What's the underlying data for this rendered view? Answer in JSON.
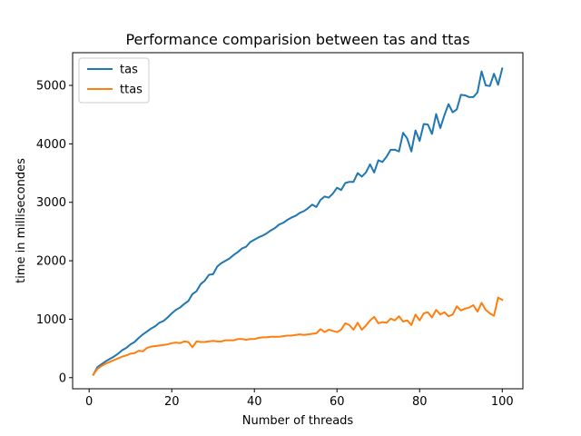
{
  "chart_data": {
    "type": "line",
    "title": "Performance comparision between tas and ttas",
    "xlabel": "Number of threads",
    "ylabel": "time in millisecondes",
    "xlim": [
      -4,
      105
    ],
    "ylim": [
      -190,
      5560
    ],
    "x_ticks": [
      0,
      20,
      40,
      60,
      80,
      100
    ],
    "y_ticks": [
      0,
      1000,
      2000,
      3000,
      4000,
      5000
    ],
    "grid": false,
    "legend_position": "upper-left",
    "x": [
      1,
      2,
      3,
      4,
      5,
      6,
      7,
      8,
      9,
      10,
      11,
      12,
      13,
      14,
      15,
      16,
      17,
      18,
      19,
      20,
      21,
      22,
      23,
      24,
      25,
      26,
      27,
      28,
      29,
      30,
      31,
      32,
      33,
      34,
      35,
      36,
      37,
      38,
      39,
      40,
      41,
      42,
      43,
      44,
      45,
      46,
      47,
      48,
      49,
      50,
      51,
      52,
      53,
      54,
      55,
      56,
      57,
      58,
      59,
      60,
      61,
      62,
      63,
      64,
      65,
      66,
      67,
      68,
      69,
      70,
      71,
      72,
      73,
      74,
      75,
      76,
      77,
      78,
      79,
      80,
      81,
      82,
      83,
      84,
      85,
      86,
      87,
      88,
      89,
      90,
      91,
      92,
      93,
      94,
      95,
      96,
      97,
      98,
      99,
      100
    ],
    "series": [
      {
        "name": "tas",
        "color": "#1f77b4",
        "values": [
          50,
          180,
          230,
          280,
          320,
          360,
          410,
          470,
          510,
          570,
          610,
          680,
          740,
          790,
          840,
          880,
          940,
          970,
          1030,
          1100,
          1160,
          1200,
          1260,
          1310,
          1430,
          1480,
          1600,
          1660,
          1760,
          1770,
          1900,
          1960,
          2000,
          2040,
          2100,
          2150,
          2210,
          2240,
          2320,
          2360,
          2400,
          2430,
          2470,
          2520,
          2560,
          2620,
          2650,
          2700,
          2740,
          2770,
          2820,
          2850,
          2900,
          2960,
          2920,
          3040,
          3100,
          3080,
          3150,
          3250,
          3210,
          3330,
          3350,
          3350,
          3500,
          3440,
          3510,
          3650,
          3510,
          3720,
          3690,
          3780,
          3900,
          3900,
          3870,
          4190,
          4090,
          3870,
          4230,
          4050,
          4340,
          4330,
          4170,
          4510,
          4270,
          4490,
          4680,
          4540,
          4590,
          4840,
          4830,
          4800,
          4800,
          4880,
          5240,
          5000,
          4990,
          5200,
          5010,
          5290
        ]
      },
      {
        "name": "ttas",
        "color": "#ff7f0e",
        "values": [
          50,
          150,
          200,
          240,
          270,
          300,
          330,
          360,
          380,
          410,
          420,
          460,
          450,
          510,
          530,
          540,
          550,
          560,
          570,
          590,
          600,
          590,
          620,
          610,
          520,
          620,
          610,
          610,
          620,
          630,
          620,
          620,
          640,
          640,
          640,
          660,
          660,
          650,
          660,
          660,
          680,
          690,
          690,
          700,
          700,
          700,
          710,
          720,
          720,
          730,
          740,
          730,
          740,
          750,
          760,
          830,
          780,
          820,
          800,
          780,
          820,
          930,
          900,
          820,
          940,
          820,
          890,
          980,
          1040,
          930,
          950,
          940,
          1010,
          980,
          1050,
          960,
          980,
          900,
          1080,
          980,
          1100,
          1120,
          1030,
          1160,
          1080,
          1120,
          1050,
          1080,
          1220,
          1150,
          1180,
          1200,
          1240,
          1130,
          1280,
          1160,
          1100,
          1060,
          1370,
          1330
        ]
      }
    ]
  }
}
